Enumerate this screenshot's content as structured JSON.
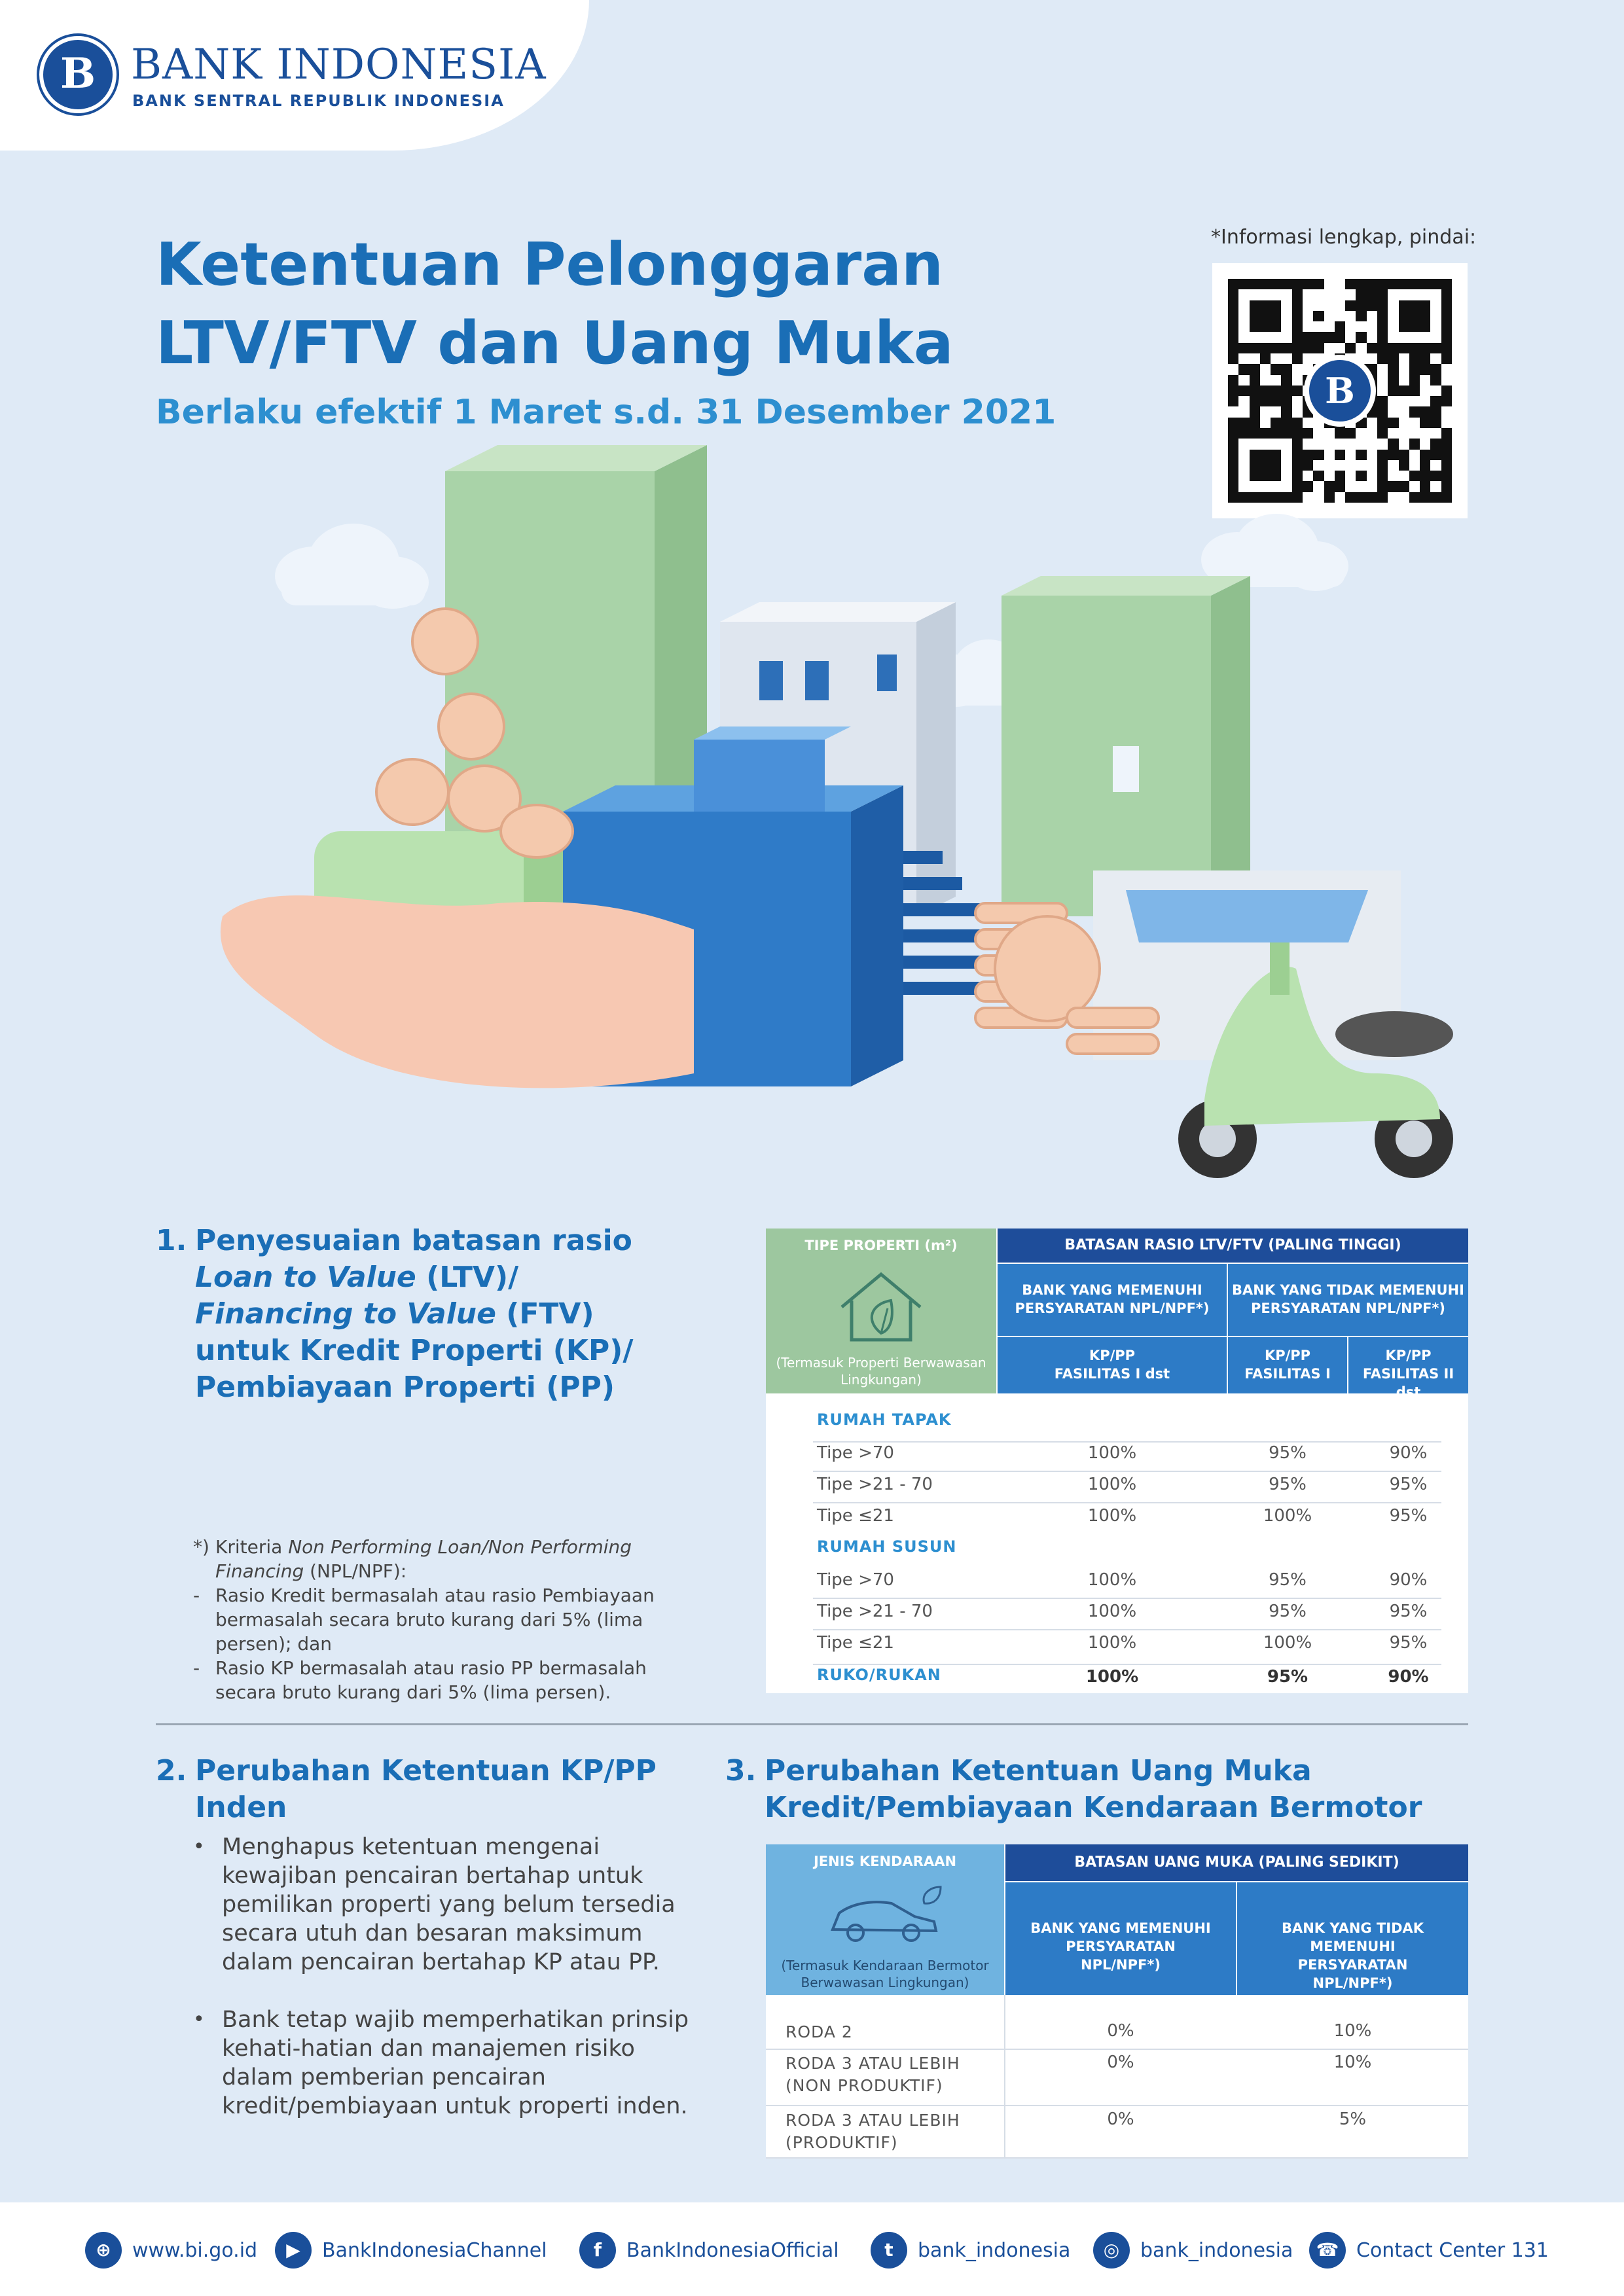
{
  "header": {
    "logo_seal": "B",
    "bank_name": "BANK INDONESIA",
    "bank_subtitle": "BANK SENTRAL REPUBLIK INDONESIA"
  },
  "title_line1": "Ketentuan Pelonggaran",
  "title_line2": "LTV/FTV dan Uang Muka",
  "subtitle": "Berlaku efektif 1 Maret s.d. 31 Desember 2021",
  "qr": {
    "note": "*Informasi lengkap, pindai:",
    "center": "B"
  },
  "section1": {
    "number": "1.",
    "line1": "Penyesuaian batasan rasio",
    "line2_em": "Loan to Value",
    "line2_rest": " (LTV)/",
    "line3_em": "Financing to Value",
    "line3_rest": " (FTV)",
    "line4": "untuk Kredit Properti (KP)/",
    "line5": "Pembiayaan Properti (PP)"
  },
  "footnote": {
    "key1": "*)",
    "text1_a": "Kriteria ",
    "text1_em": "Non Performing Loan/Non Performing Financing",
    "text1_b": " (NPL/NPF):",
    "key2": "-",
    "text2": "Rasio Kredit bermasalah atau rasio Pembiayaan bermasalah secara bruto kurang dari 5% (lima persen); dan",
    "key3": "-",
    "text3": "Rasio KP bermasalah atau rasio PP bermasalah secara bruto kurang dari 5% (lima persen)."
  },
  "table1": {
    "col0_head": "TIPE PROPERTI (m²)",
    "col0_sub": "(Termasuk Properti Berwawasan Lingkungan)",
    "main_head": "BATASAN RASIO LTV/FTV (PALING TINGGI)",
    "group_a": "BANK YANG MEMENUHI PERSYARATAN NPL/NPF*)",
    "group_b": "BANK YANG TIDAK MEMENUHI PERSYARATAN NPL/NPF*)",
    "sub_a": "KP/PP FASILITAS I dst",
    "sub_b1": "KP/PP FASILITAS I",
    "sub_b2": "KP/PP FASILITAS II dst",
    "cat1": "RUMAH TAPAK",
    "cat2": "RUMAH SUSUN",
    "rows1": [
      {
        "label": "Tipe >70",
        "a": "100%",
        "b1": "95%",
        "b2": "90%"
      },
      {
        "label": "Tipe >21 - 70",
        "a": "100%",
        "b1": "95%",
        "b2": "95%"
      },
      {
        "label": "Tipe ≤21",
        "a": "100%",
        "b1": "100%",
        "b2": "95%"
      }
    ],
    "rows2": [
      {
        "label": "Tipe >70",
        "a": "100%",
        "b1": "95%",
        "b2": "90%"
      },
      {
        "label": "Tipe >21 - 70",
        "a": "100%",
        "b1": "95%",
        "b2": "95%"
      },
      {
        "label": "Tipe ≤21",
        "a": "100%",
        "b1": "100%",
        "b2": "95%"
      }
    ],
    "ruko": {
      "label": "RUKO/RUKAN",
      "a": "100%",
      "b1": "95%",
      "b2": "90%"
    }
  },
  "section2": {
    "number": "2.",
    "line1": "Perubahan Ketentuan KP/PP",
    "line2": "Inden",
    "bullet": "•",
    "b1": "Menghapus ketentuan mengenai kewajiban pencairan bertahap untuk pemilikan properti yang belum tersedia secara utuh dan besaran maksimum dalam pencairan bertahap KP atau PP.",
    "b2": "Bank tetap wajib memperhatikan prinsip kehati-hatian dan manajemen risiko dalam pemberian pencairan kredit/pembiayaan untuk properti inden."
  },
  "section3": {
    "number": "3.",
    "line1": "Perubahan Ketentuan Uang Muka",
    "line2": "Kredit/Pembiayaan Kendaraan Bermotor"
  },
  "table2": {
    "col0_head": "JENIS KENDARAAN",
    "col0_sub": "(Termasuk Kendaraan Bermotor Berwawasan Lingkungan)",
    "main_head": "BATASAN UANG MUKA (PALING SEDIKIT)",
    "group_a": "BANK YANG MEMENUHI PERSYARATAN NPL/NPF*)",
    "group_b": "BANK YANG TIDAK MEMENUHI PERSYARATAN NPL/NPF*)",
    "rows": [
      {
        "label1": "RODA 2",
        "label2": "",
        "a": "0%",
        "b": "10%"
      },
      {
        "label1": "RODA 3 ATAU LEBIH",
        "label2": "(NON PRODUKTIF)",
        "a": "0%",
        "b": "10%"
      },
      {
        "label1": "RODA 3 ATAU LEBIH",
        "label2": "(PRODUKTIF)",
        "a": "0%",
        "b": "5%"
      }
    ]
  },
  "footer": {
    "web_icon": "⊕",
    "web": "www.bi.go.id",
    "yt_icon": "▶",
    "yt": "BankIndonesiaChannel",
    "fb_icon": "f",
    "fb": "BankIndonesiaOfficial",
    "tw_icon": "t",
    "tw": "bank_indonesia",
    "ig_icon": "◎",
    "ig": "bank_indonesia",
    "ph_icon": "☎",
    "ph": "Contact Center 131"
  },
  "colors": {
    "primary": "#1a6eb6",
    "dark_blue": "#1e4d9a",
    "green_head": "#9dc79f",
    "background": "#dfeaf6"
  }
}
